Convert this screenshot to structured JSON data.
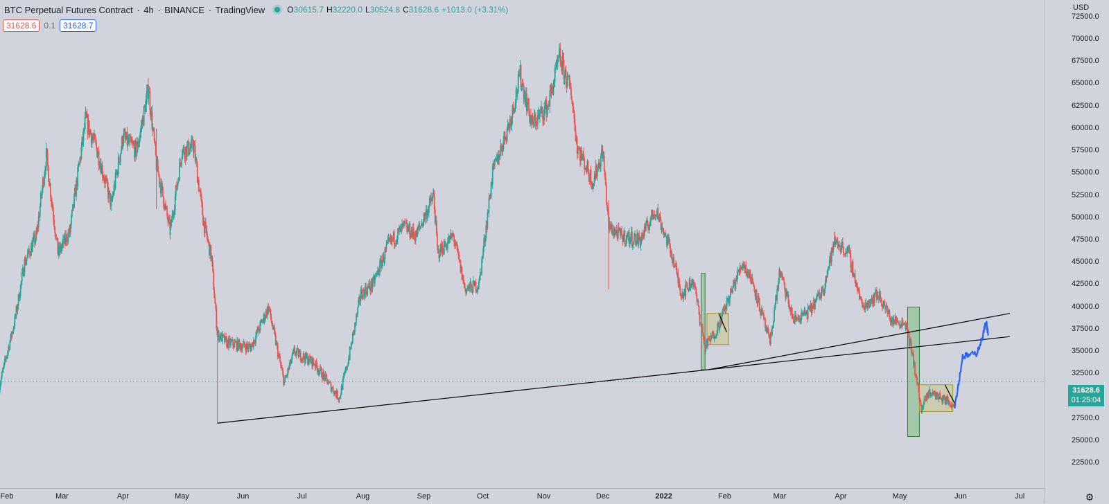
{
  "header": {
    "symbol": "BTC Perpetual Futures Contract",
    "interval": "4h",
    "exchange": "BINANCE",
    "source": "TradingView",
    "ohlc": {
      "o_label": "O",
      "o": "30615.7",
      "h_label": "H",
      "h": "32220.0",
      "l_label": "L",
      "l": "30524.8",
      "c_label": "C",
      "c": "31628.6",
      "change": "+1013.0 (+3.31%)"
    }
  },
  "trade": {
    "sell": "31628.6",
    "spread": "0.1",
    "buy": "31628.7"
  },
  "price_axis": {
    "currency": "USD",
    "ticks": [
      "72500.0",
      "70000.0",
      "67500.0",
      "65000.0",
      "62500.0",
      "60000.0",
      "57500.0",
      "55000.0",
      "52500.0",
      "50000.0",
      "47500.0",
      "45000.0",
      "42500.0",
      "40000.0",
      "37500.0",
      "35000.0",
      "32500.0",
      "30000.0",
      "27500.0",
      "25000.0",
      "22500.0"
    ],
    "last_price": "31628.6",
    "countdown": "01:25:04"
  },
  "time_axis": {
    "labels": [
      "Feb",
      "Mar",
      "Apr",
      "May",
      "Jun",
      "Jul",
      "Aug",
      "Sep",
      "Oct",
      "Nov",
      "Dec",
      "2022",
      "Feb",
      "Mar",
      "Apr",
      "May",
      "Jun",
      "Jul"
    ]
  },
  "colors": {
    "background": "#d1d4dc",
    "up": "#26a69a",
    "down": "#ef5350",
    "projection": "#2962ff",
    "trendline": "#000000",
    "box_green": "#4caf50",
    "box_yellow": "#c8c27a",
    "last_price_bg": "#26a69a"
  },
  "icons": {
    "status": "market-open-dot-icon",
    "settings": "gear-icon"
  },
  "chart_data": {
    "type": "candlestick",
    "title": "BTC Perpetual Futures Contract · 4h · BINANCE",
    "ylabel": "USD",
    "ylim": [
      21000,
      73500
    ],
    "last_close": 31628.6,
    "path_anchors": [
      [
        "2021-01-28",
        31000
      ],
      [
        "2021-02-05",
        38500
      ],
      [
        "2021-02-10",
        45000
      ],
      [
        "2021-02-16",
        48000
      ],
      [
        "2021-02-21",
        57000
      ],
      [
        "2021-02-27",
        46000
      ],
      [
        "2021-03-05",
        48500
      ],
      [
        "2021-03-13",
        61000
      ],
      [
        "2021-03-19",
        57500
      ],
      [
        "2021-03-26",
        51500
      ],
      [
        "2021-04-01",
        59000
      ],
      [
        "2021-04-08",
        57500
      ],
      [
        "2021-04-14",
        64500
      ],
      [
        "2021-04-18",
        56000
      ],
      [
        "2021-04-25",
        48500
      ],
      [
        "2021-05-01",
        57500
      ],
      [
        "2021-05-07",
        58000
      ],
      [
        "2021-05-12",
        49500
      ],
      [
        "2021-05-16",
        45500
      ],
      [
        "2021-05-19",
        37000
      ],
      [
        "2021-05-24",
        36000
      ],
      [
        "2021-06-05",
        35500
      ],
      [
        "2021-06-14",
        40000
      ],
      [
        "2021-06-22",
        31500
      ],
      [
        "2021-06-27",
        35000
      ],
      [
        "2021-07-07",
        33800
      ],
      [
        "2021-07-20",
        29800
      ],
      [
        "2021-07-25",
        34500
      ],
      [
        "2021-07-31",
        41500
      ],
      [
        "2021-08-06",
        42500
      ],
      [
        "2021-08-14",
        47000
      ],
      [
        "2021-08-22",
        49000
      ],
      [
        "2021-08-28",
        48000
      ],
      [
        "2021-09-06",
        52500
      ],
      [
        "2021-09-08",
        46000
      ],
      [
        "2021-09-16",
        48000
      ],
      [
        "2021-09-22",
        42000
      ],
      [
        "2021-09-29",
        42500
      ],
      [
        "2021-10-06",
        55000
      ],
      [
        "2021-10-15",
        61000
      ],
      [
        "2021-10-20",
        66000
      ],
      [
        "2021-10-26",
        60500
      ],
      [
        "2021-11-03",
        62500
      ],
      [
        "2021-11-09",
        68000
      ],
      [
        "2021-11-15",
        64000
      ],
      [
        "2021-11-18",
        58000
      ],
      [
        "2021-11-26",
        54000
      ],
      [
        "2021-12-01",
        57500
      ],
      [
        "2021-12-04",
        49000
      ],
      [
        "2021-12-10",
        48000
      ],
      [
        "2021-12-20",
        47500
      ],
      [
        "2021-12-28",
        51000
      ],
      [
        "2022-01-05",
        46000
      ],
      [
        "2022-01-10",
        41500
      ],
      [
        "2022-01-16",
        43000
      ],
      [
        "2022-01-22",
        35500
      ],
      [
        "2022-01-28",
        37500
      ],
      [
        "2022-02-04",
        41500
      ],
      [
        "2022-02-10",
        45000
      ],
      [
        "2022-02-15",
        43000
      ],
      [
        "2022-02-24",
        36000
      ],
      [
        "2022-03-01",
        44000
      ],
      [
        "2022-03-08",
        38500
      ],
      [
        "2022-03-16",
        39500
      ],
      [
        "2022-03-23",
        42000
      ],
      [
        "2022-03-29",
        47500
      ],
      [
        "2022-04-05",
        46000
      ],
      [
        "2022-04-12",
        40000
      ],
      [
        "2022-04-20",
        41500
      ],
      [
        "2022-04-27",
        38500
      ],
      [
        "2022-05-04",
        38200
      ],
      [
        "2022-05-08",
        34000
      ],
      [
        "2022-05-12",
        28500
      ],
      [
        "2022-05-16",
        30500
      ],
      [
        "2022-05-25",
        29500
      ],
      [
        "2022-05-29",
        29000
      ]
    ],
    "projection": [
      [
        "2022-05-29",
        29000
      ],
      [
        "2022-05-31",
        31500
      ],
      [
        "2022-06-02",
        34500
      ],
      [
        "2022-06-05",
        34600
      ],
      [
        "2022-06-09",
        34800
      ],
      [
        "2022-06-12",
        36500
      ],
      [
        "2022-06-14",
        38500
      ],
      [
        "2022-06-15",
        36800
      ]
    ],
    "trendlines": [
      {
        "from": [
          "2021-05-19",
          27000
        ],
        "to": [
          "2022-01-24",
          33000
        ]
      },
      {
        "from": [
          "2022-01-24",
          33000
        ],
        "to": [
          "2022-06-26",
          39300
        ]
      },
      {
        "from": [
          "2022-01-24",
          33000
        ],
        "to": [
          "2022-06-26",
          36700
        ]
      }
    ],
    "rectangles": [
      {
        "kind": "green",
        "from": [
          "2022-01-20",
          33000
        ],
        "to": [
          "2022-01-22",
          43800
        ]
      },
      {
        "kind": "yellow",
        "from": [
          "2022-01-23",
          35800
        ],
        "to": [
          "2022-02-03",
          39300
        ]
      },
      {
        "kind": "green",
        "from": [
          "2022-05-05",
          25500
        ],
        "to": [
          "2022-05-11",
          40000
        ]
      },
      {
        "kind": "yellow",
        "from": [
          "2022-05-11",
          28300
        ],
        "to": [
          "2022-05-28",
          31300
        ]
      }
    ],
    "date_range": [
      "2021-01-22",
      "2022-07-30"
    ]
  }
}
